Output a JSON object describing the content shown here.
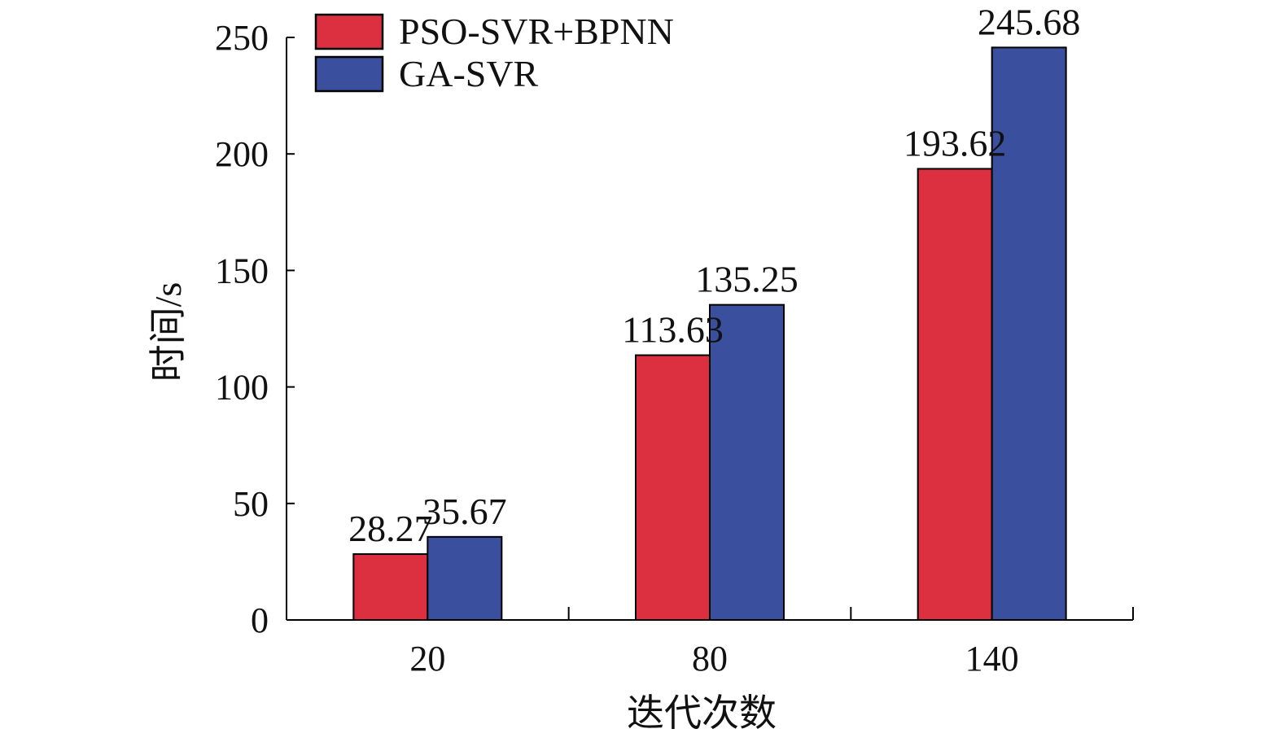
{
  "chart_data": {
    "type": "bar",
    "categories": [
      "20",
      "80",
      "140"
    ],
    "series": [
      {
        "name": "PSO-SVR+BPNN",
        "values": [
          28.27,
          113.63,
          193.62
        ],
        "color": "#dc2f3f"
      },
      {
        "name": "GA-SVR",
        "values": [
          35.67,
          135.25,
          245.68
        ],
        "color": "#3a4f9e"
      }
    ],
    "data_labels": [
      [
        "28.27",
        "113.63",
        "193.62"
      ],
      [
        "35.67",
        "135.25",
        "245.68"
      ]
    ],
    "xlabel": "迭代次数",
    "ylabel": "时间/s",
    "ylim": [
      0,
      250
    ],
    "yticks": [
      0,
      50,
      100,
      150,
      200,
      250
    ],
    "ytick_labels": [
      "0",
      "50",
      "100",
      "150",
      "200",
      "250"
    ],
    "grid": false,
    "legend_position": "top-left"
  }
}
